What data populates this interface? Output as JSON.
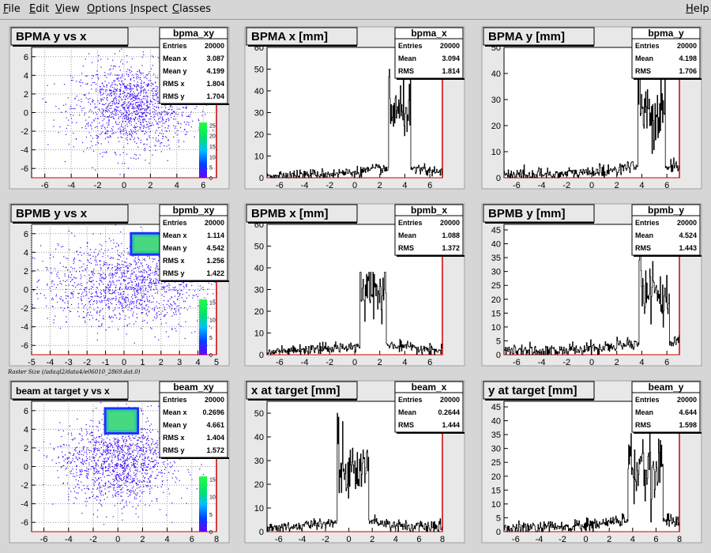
{
  "menubar": {
    "items": [
      {
        "label": "File",
        "underline": "F",
        "rest": "ile"
      },
      {
        "label": "Edit",
        "underline": "E",
        "rest": "dit"
      },
      {
        "label": "View",
        "underline": "V",
        "rest": "iew"
      },
      {
        "label": "Options",
        "underline": "O",
        "rest": "ptions"
      },
      {
        "label": "Inspect",
        "underline": "I",
        "rest": "nspect"
      },
      {
        "label": "Classes",
        "underline": "C",
        "rest": "lasses"
      }
    ],
    "help": {
      "label": "Help",
      "underline": "H",
      "rest": "elp"
    }
  },
  "raster_caption": "Raster Size (/adaql2/data4/e06010_2869.dat.0)",
  "colors": {
    "scatter_point": "#3a00ff",
    "axis_red": "#cc0000",
    "frame_bg": "#e8e8e8",
    "hist_line": "#000000"
  },
  "chart_data": [
    {
      "type": "scatter",
      "title": "BPMA y vs x",
      "stats_name": "bpma_xy",
      "stats": [
        [
          "Entries",
          "20000"
        ],
        [
          "Mean x",
          "3.087"
        ],
        [
          "Mean y",
          "4.199"
        ],
        [
          "RMS x",
          "1.804"
        ],
        [
          "RMS y",
          "1.704"
        ]
      ],
      "xlim": [
        -7,
        7
      ],
      "ylim": [
        -7,
        7
      ],
      "xticks": [
        -6,
        -4,
        -2,
        0,
        2,
        4,
        6
      ],
      "yticks": [
        -6,
        -4,
        -2,
        0,
        2,
        4,
        6
      ],
      "cluster": {
        "x": [
          3.0,
          4.2
        ],
        "y": [
          3.6,
          4.8
        ]
      },
      "palette_ticks": [
        0,
        5,
        10,
        15,
        20,
        25
      ]
    },
    {
      "type": "histogram",
      "title": "BPMA x [mm]",
      "stats_name": "bpma_x",
      "stats": [
        [
          "Entries",
          "20000"
        ],
        [
          "Mean",
          "3.094"
        ],
        [
          "RMS",
          "1.814"
        ]
      ],
      "xlim": [
        -7,
        7
      ],
      "ylim": [
        0,
        60
      ],
      "xticks": [
        -6,
        -4,
        -2,
        0,
        2,
        4,
        6
      ],
      "yticks": [
        0,
        10,
        20,
        30,
        40,
        50,
        60
      ],
      "shape": {
        "lo": 2.7,
        "hi": 4.5,
        "peak": 50,
        "plateau": 30
      }
    },
    {
      "type": "histogram",
      "title": "BPMA y [mm]",
      "stats_name": "bpma_y",
      "stats": [
        [
          "Entries",
          "20000"
        ],
        [
          "Mean",
          "4.198"
        ],
        [
          "RMS",
          "1.706"
        ]
      ],
      "xlim": [
        -7,
        7
      ],
      "ylim": [
        0,
        50
      ],
      "xticks": [
        -6,
        -4,
        -2,
        0,
        2,
        4,
        6
      ],
      "yticks": [
        0,
        10,
        20,
        30,
        40,
        50
      ],
      "shape": {
        "lo": 3.7,
        "hi": 5.9,
        "peak": 42,
        "plateau": 25
      }
    },
    {
      "type": "scatter",
      "title": "BPMB y vs x",
      "stats_name": "bpmb_xy",
      "stats": [
        [
          "Entries",
          "20000"
        ],
        [
          "Mean x",
          "1.114"
        ],
        [
          "Mean y",
          "4.542"
        ],
        [
          "RMS x",
          "1.256"
        ],
        [
          "RMS y",
          "1.422"
        ]
      ],
      "xlim": [
        -5,
        5
      ],
      "ylim": [
        -7,
        7
      ],
      "xticks": [
        -5,
        -4,
        -3,
        -2,
        -1,
        0,
        1,
        2,
        3,
        4,
        5
      ],
      "yticks": [
        -6,
        -4,
        -2,
        0,
        2,
        4,
        6
      ],
      "cluster": {
        "x": [
          0.4,
          2.4
        ],
        "y": [
          3.8,
          6.0
        ]
      },
      "palette_ticks": [
        0,
        5,
        10,
        15
      ]
    },
    {
      "type": "histogram",
      "title": "BPMB x [mm]",
      "stats_name": "bpmb_x",
      "stats": [
        [
          "Entries",
          "20000"
        ],
        [
          "Mean",
          "1.088"
        ],
        [
          "RMS",
          "1.372"
        ]
      ],
      "xlim": [
        -7,
        7
      ],
      "ylim": [
        0,
        60
      ],
      "xticks": [
        -6,
        -4,
        -2,
        0,
        2,
        4,
        6
      ],
      "yticks": [
        0,
        10,
        20,
        30,
        40,
        50,
        60
      ],
      "shape": {
        "lo": 0.4,
        "hi": 2.5,
        "peak": 38,
        "plateau": 28
      }
    },
    {
      "type": "histogram",
      "title": "BPMB y [mm]",
      "stats_name": "bpmb_y",
      "stats": [
        [
          "Entries",
          "20000"
        ],
        [
          "Mean",
          "4.524"
        ],
        [
          "RMS",
          "1.443"
        ]
      ],
      "xlim": [
        -7,
        7
      ],
      "ylim": [
        0,
        47
      ],
      "xticks": [
        -6,
        -4,
        -2,
        0,
        2,
        4,
        6
      ],
      "yticks": [
        0,
        5,
        10,
        15,
        20,
        25,
        30,
        35,
        40,
        45
      ],
      "shape": {
        "lo": 3.8,
        "hi": 6.2,
        "peak": 40,
        "plateau": 22
      }
    },
    {
      "type": "scatter",
      "title": "beam at target y vs x",
      "stats_name": "beam_xy",
      "stats": [
        [
          "Entries",
          "20000"
        ],
        [
          "Mean x",
          "0.2696"
        ],
        [
          "Mean y",
          "4.661"
        ],
        [
          "RMS x",
          "1.404"
        ],
        [
          "RMS y",
          "1.572"
        ]
      ],
      "xlim": [
        -7,
        8
      ],
      "ylim": [
        -7,
        7
      ],
      "xticks": [
        -6,
        -4,
        -2,
        0,
        2,
        4,
        6,
        8
      ],
      "yticks": [
        -6,
        -4,
        -2,
        0,
        2,
        4,
        6
      ],
      "cluster": {
        "x": [
          -1.0,
          1.6
        ],
        "y": [
          3.6,
          6.2
        ]
      },
      "palette_ticks": [
        0,
        5,
        10,
        15
      ]
    },
    {
      "type": "histogram",
      "title": "x at target [mm]",
      "stats_name": "beam_x",
      "stats": [
        [
          "Entries",
          "20000"
        ],
        [
          "Mean",
          "0.2644"
        ],
        [
          "RMS",
          "1.444"
        ]
      ],
      "xlim": [
        -7,
        8
      ],
      "ylim": [
        0,
        55
      ],
      "xticks": [
        -6,
        -4,
        -2,
        0,
        2,
        4,
        6,
        8
      ],
      "yticks": [
        0,
        10,
        20,
        30,
        40,
        50
      ],
      "shape": {
        "lo": -1.0,
        "hi": 1.7,
        "peak": 50,
        "plateau": 25
      }
    },
    {
      "type": "histogram",
      "title": "y at target [mm]",
      "stats_name": "beam_y",
      "stats": [
        [
          "Entries",
          "20000"
        ],
        [
          "Mean",
          "4.644"
        ],
        [
          "RMS",
          "1.598"
        ]
      ],
      "xlim": [
        -7,
        8
      ],
      "ylim": [
        0,
        47
      ],
      "xticks": [
        -6,
        -4,
        -2,
        0,
        2,
        4,
        6,
        8
      ],
      "yticks": [
        0,
        5,
        10,
        15,
        20,
        25,
        30,
        35,
        40,
        45
      ],
      "shape": {
        "lo": 3.6,
        "hi": 6.6,
        "peak": 38,
        "plateau": 22
      }
    }
  ]
}
